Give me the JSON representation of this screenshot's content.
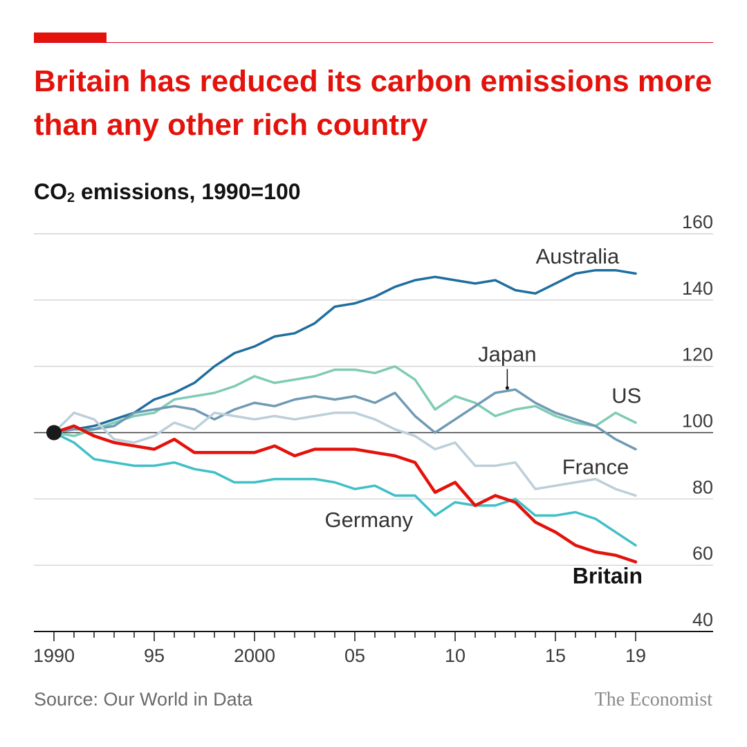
{
  "header": {
    "headline": "Britain has reduced its carbon emissions more than any other rich country"
  },
  "chart_data": {
    "type": "line",
    "title": "Britain has reduced its carbon emissions more than any other rich country",
    "ylabel_main": "CO",
    "ylabel_sub": "2",
    "ylabel_rest": " emissions, 1990=100",
    "ylim": [
      40,
      160
    ],
    "yticks": [
      160,
      140,
      120,
      100,
      80,
      60,
      40
    ],
    "xlim": [
      1990,
      2022
    ],
    "x_ticks": [
      {
        "year": 1990,
        "label": "1990"
      },
      {
        "year": 1995,
        "label": "95"
      },
      {
        "year": 2000,
        "label": "2000"
      },
      {
        "year": 2005,
        "label": "05"
      },
      {
        "year": 2010,
        "label": "10"
      },
      {
        "year": 2015,
        "label": "15"
      },
      {
        "year": 2019,
        "label": "19"
      }
    ],
    "grid": true,
    "base_marker": {
      "year": 1990,
      "value": 100
    },
    "x": [
      1990,
      1991,
      1992,
      1993,
      1994,
      1995,
      1996,
      1997,
      1998,
      1999,
      2000,
      2001,
      2002,
      2003,
      2004,
      2005,
      2006,
      2007,
      2008,
      2009,
      2010,
      2011,
      2012,
      2013,
      2014,
      2015,
      2016,
      2017,
      2018,
      2019
    ],
    "series": [
      {
        "name": "Australia",
        "color": "#1f6e9e",
        "width": 3.5,
        "values": [
          100,
          101,
          102,
          104,
          106,
          110,
          112,
          115,
          120,
          124,
          126,
          129,
          130,
          133,
          138,
          139,
          141,
          144,
          146,
          147,
          146,
          145,
          146,
          143,
          142,
          145,
          148,
          149,
          149,
          148
        ]
      },
      {
        "name": "US",
        "color": "#7fcbb5",
        "width": 3.5,
        "values": [
          100,
          99,
          101,
          103,
          105,
          106,
          110,
          111,
          112,
          114,
          117,
          115,
          116,
          117,
          119,
          119,
          118,
          120,
          116,
          107,
          111,
          109,
          105,
          107,
          108,
          105,
          103,
          102,
          106,
          103
        ]
      },
      {
        "name": "Japan",
        "color": "#6f9ab4",
        "width": 3.5,
        "values": [
          100,
          101,
          101,
          102,
          106,
          107,
          108,
          107,
          104,
          107,
          109,
          108,
          110,
          111,
          110,
          111,
          109,
          112,
          105,
          100,
          104,
          108,
          112,
          113,
          109,
          106,
          104,
          102,
          98,
          95
        ]
      },
      {
        "name": "France",
        "color": "#bccfd9",
        "width": 3.5,
        "values": [
          100,
          106,
          104,
          98,
          97,
          99,
          103,
          101,
          106,
          105,
          104,
          105,
          104,
          105,
          106,
          106,
          104,
          101,
          99,
          95,
          97,
          90,
          90,
          91,
          83,
          84,
          85,
          86,
          83,
          81
        ]
      },
      {
        "name": "Germany",
        "color": "#3fbfc7",
        "width": 3.5,
        "values": [
          100,
          97,
          92,
          91,
          90,
          90,
          91,
          89,
          88,
          85,
          85,
          86,
          86,
          86,
          85,
          83,
          84,
          81,
          81,
          75,
          79,
          78,
          78,
          80,
          75,
          75,
          76,
          74,
          70,
          66
        ]
      },
      {
        "name": "Britain",
        "color": "#e3120b",
        "width": 4.5,
        "values": [
          100,
          102,
          99,
          97,
          96,
          95,
          98,
          94,
          94,
          94,
          94,
          96,
          93,
          95,
          95,
          95,
          94,
          93,
          91,
          82,
          85,
          78,
          81,
          79,
          73,
          70,
          66,
          64,
          63,
          61
        ]
      }
    ],
    "labels": [
      {
        "series": "Australia",
        "text": "Australia",
        "year": 2016.1,
        "value": 151,
        "bold": false,
        "anchor": "middle"
      },
      {
        "series": "Japan",
        "text": "Japan",
        "year": 2012.6,
        "value": 121.5,
        "bold": false,
        "anchor": "middle"
      },
      {
        "series": "US",
        "text": "US",
        "year": 2017.8,
        "value": 109,
        "bold": false,
        "anchor": "start"
      },
      {
        "series": "France",
        "text": "France",
        "year": 2017,
        "value": 87.5,
        "bold": false,
        "anchor": "middle"
      },
      {
        "series": "Germany",
        "text": "Germany",
        "year": 2005.7,
        "value": 71.5,
        "bold": false,
        "anchor": "middle"
      },
      {
        "series": "Britain",
        "text": "Britain",
        "year": 2017.6,
        "value": 54.5,
        "bold": true,
        "anchor": "middle"
      }
    ],
    "callout": {
      "series": "Japan",
      "year": 2012.6,
      "value_top": 119.2,
      "value_bottom": 113.5
    },
    "source": "Source: Our World in Data",
    "brand": "The Economist"
  }
}
